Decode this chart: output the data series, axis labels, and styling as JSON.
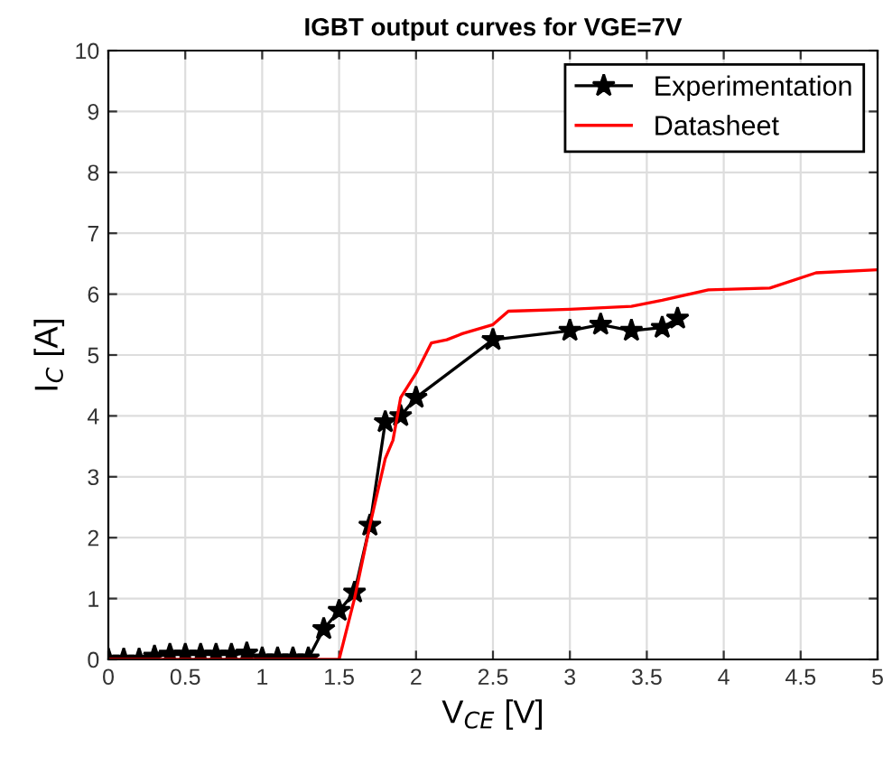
{
  "chart_data": {
    "type": "line",
    "title": "IGBT output curves for VGE=7V",
    "xlabel": "V$_{CE}$ [V]",
    "ylabel": "I$_{C}$ [A]",
    "xlim": [
      0,
      5
    ],
    "ylim": [
      0,
      10
    ],
    "xticks": [
      0,
      0.5,
      1,
      1.5,
      2,
      2.5,
      3,
      3.5,
      4,
      4.5,
      5
    ],
    "yticks": [
      0,
      1,
      2,
      3,
      4,
      5,
      6,
      7,
      8,
      9,
      10
    ],
    "grid": true,
    "legend": "top right",
    "series": [
      {
        "name": "Experimentation",
        "color": "#000000",
        "marker": "star",
        "x": [
          0,
          0.1,
          0.2,
          0.3,
          0.4,
          0.5,
          0.6,
          0.7,
          0.8,
          0.9,
          1.0,
          1.1,
          1.2,
          1.3,
          1.4,
          1.5,
          1.6,
          1.7,
          1.8,
          1.9,
          2.0,
          2.5,
          3.0,
          3.2,
          3.4,
          3.6,
          3.7
        ],
        "values": [
          0,
          0,
          0,
          0.05,
          0.08,
          0.08,
          0.08,
          0.08,
          0.08,
          0.1,
          0.02,
          0.02,
          0.02,
          0.02,
          0.5,
          0.8,
          1.1,
          2.2,
          3.9,
          4.0,
          4.3,
          5.25,
          5.4,
          5.5,
          5.4,
          5.45,
          5.6
        ]
      },
      {
        "name": "Datasheet",
        "color": "#ff0000",
        "marker": "none",
        "x": [
          0,
          1.5,
          1.6,
          1.7,
          1.8,
          1.85,
          1.9,
          2.0,
          2.1,
          2.2,
          2.3,
          2.5,
          2.6,
          3.0,
          3.4,
          3.6,
          3.9,
          4.3,
          4.6,
          5.0
        ],
        "values": [
          0,
          0,
          1.0,
          2.2,
          3.3,
          3.6,
          4.3,
          4.7,
          5.2,
          5.25,
          5.35,
          5.5,
          5.72,
          5.75,
          5.8,
          5.9,
          6.07,
          6.1,
          6.35,
          6.4
        ]
      }
    ]
  }
}
